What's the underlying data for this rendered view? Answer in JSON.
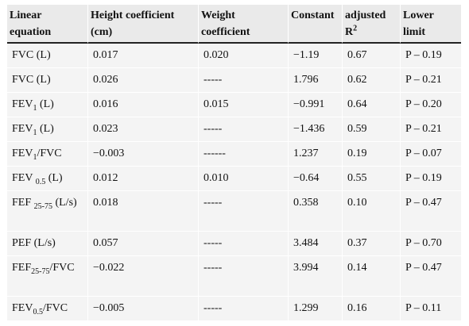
{
  "header": {
    "col1": "Linear equation",
    "col2": "Height coefficient (cm)",
    "col3": "Weight coefficient",
    "col4": "Constant",
    "col5_main": "adjusted R",
    "col5_sup": "2",
    "col6": "Lower limit"
  },
  "rows": [
    {
      "eq_main": "FVC (L)",
      "eq_sub": "",
      "eq_tail": "",
      "height": "0.017",
      "weight": "0.020",
      "constant": "−1.19",
      "r2": "0.67",
      "lower": "P – 0.19"
    },
    {
      "eq_main": "FVC (L)",
      "eq_sub": "",
      "eq_tail": "",
      "height": "0.026",
      "weight": "-----",
      "constant": "1.796",
      "r2": "0.62",
      "lower": "P – 0.21"
    },
    {
      "eq_main": "FEV",
      "eq_sub": "1",
      "eq_tail": " (L)",
      "height": "0.016",
      "weight": "0.015",
      "constant": "−0.991",
      "r2": "0.64",
      "lower": "P – 0.20"
    },
    {
      "eq_main": "FEV",
      "eq_sub": "1",
      "eq_tail": " (L)",
      "height": "0.023",
      "weight": "-----",
      "constant": "−1.436",
      "r2": "0.59",
      "lower": "P – 0.21"
    },
    {
      "eq_main": "FEV",
      "eq_sub": "1",
      "eq_tail": "/FVC",
      "height": "−0.003",
      "weight": "------",
      "constant": "1.237",
      "r2": "0.19",
      "lower": "P – 0.07"
    },
    {
      "eq_main": "FEV ",
      "eq_sub": "0.5",
      "eq_tail": " (L)",
      "height": "0.012",
      "weight": "0.010",
      "constant": "−0.64",
      "r2": "0.55",
      "lower": "P – 0.19"
    },
    {
      "eq_main": "FEF ",
      "eq_sub": "25-75",
      "eq_tail": " (L/s)",
      "height": "0.018",
      "weight": "-----",
      "constant": "0.358",
      "r2": "0.10",
      "lower": "P – 0.47"
    },
    {
      "eq_main": "PEF (L/s)",
      "eq_sub": "",
      "eq_tail": "",
      "height": "0.057",
      "weight": "-----",
      "constant": "3.484",
      "r2": "0.37",
      "lower": "P – 0.70"
    },
    {
      "eq_main": "FEF",
      "eq_sub": "25-75",
      "eq_tail": "/FVC",
      "height": "−0.022",
      "weight": "-----",
      "constant": "3.994",
      "r2": "0.14",
      "lower": "P – 0.47"
    },
    {
      "eq_main": "FEV",
      "eq_sub": "0.5",
      "eq_tail": "/FVC",
      "height": "−0.005",
      "weight": "-----",
      "constant": "1.299",
      "r2": "0.16",
      "lower": "P – 0.11"
    }
  ]
}
